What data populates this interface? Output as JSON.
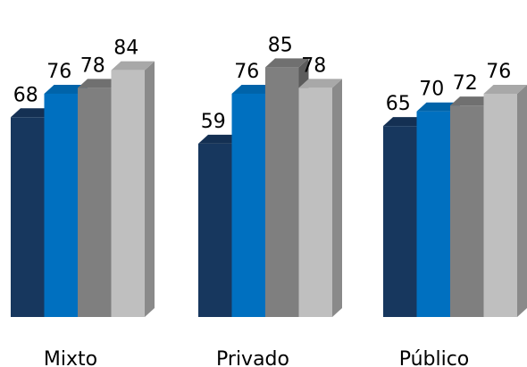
{
  "chart_data": {
    "type": "bar",
    "style": "3d-clustered-column",
    "categories": [
      "Mixto",
      "Privado",
      "Público"
    ],
    "series": [
      {
        "values": [
          68,
          59,
          65
        ],
        "color": "#17375E"
      },
      {
        "values": [
          76,
          76,
          70
        ],
        "color": "#0070C0"
      },
      {
        "values": [
          78,
          85,
          72
        ],
        "color": "#7F7F7F"
      },
      {
        "values": [
          84,
          78,
          76
        ],
        "color": "#BFBFBF"
      }
    ],
    "data_labels": true,
    "title": "",
    "xlabel": "",
    "ylabel": "",
    "legend": "none",
    "grid": false,
    "axes_visible": false
  }
}
